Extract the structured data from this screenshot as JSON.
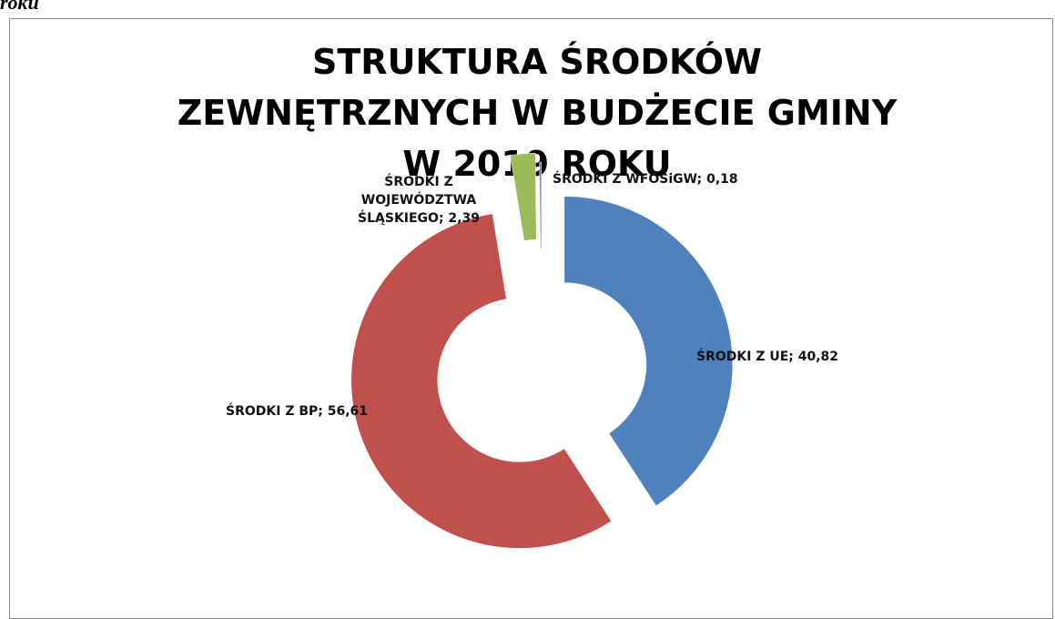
{
  "caption": "roku",
  "chart_data": {
    "type": "donut",
    "title": "STRUKTURA ŚRODKÓW ZEWNĘTRZNYCH W BUDŻECIE GMINY W 2019 ROKU",
    "values": [
      40.82,
      56.61,
      2.39,
      0.18
    ],
    "value_labels": [
      "ŚRODKI Z UE; 40,82",
      "ŚRODKI Z BP; 56,61",
      "ŚRODKI Z WOJEWÓDZTWA ŚLĄSKIEGO; 2,39",
      "ŚRODKI Z WFOŚiGW; 0,18"
    ],
    "colors": [
      "#4f81bd",
      "#c0504d",
      "#9bbb59",
      "#8064a2"
    ]
  }
}
